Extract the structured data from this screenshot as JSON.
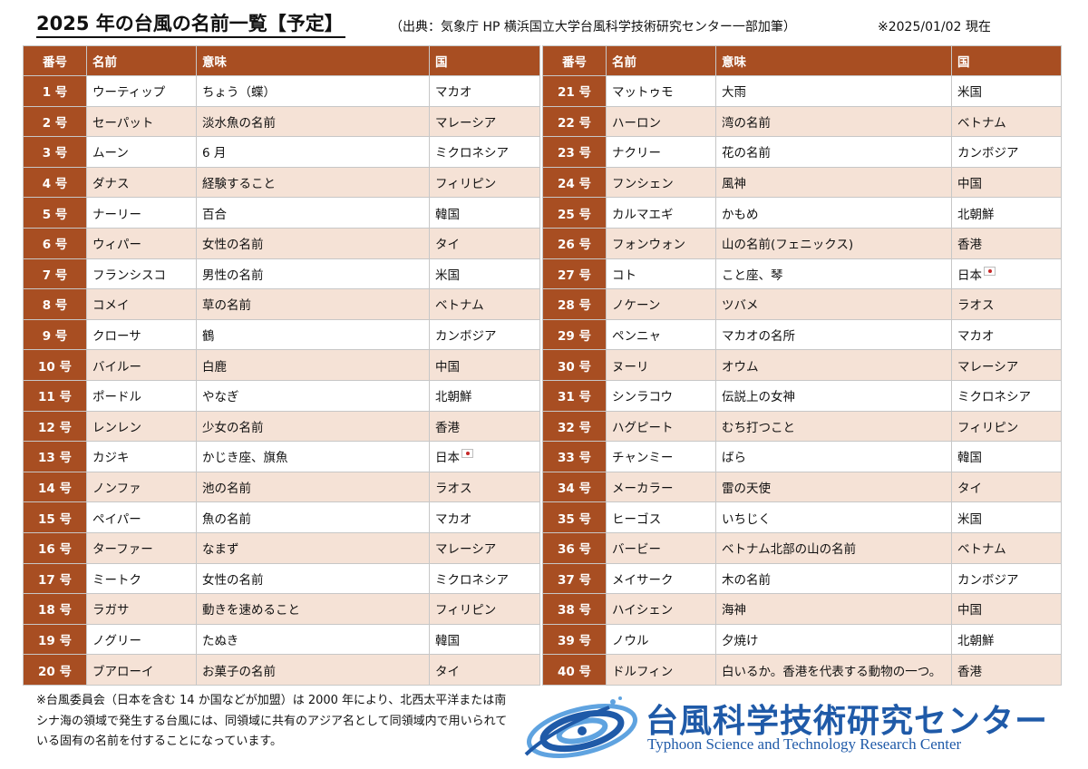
{
  "header": {
    "title": "2025 年の台風の名前一覧【予定】",
    "source": "（出典：気象庁 HP 横浜国立大学台風科学技術研究センター一部加筆）",
    "date": "※2025/01/02 現在"
  },
  "columns": [
    "番号",
    "名前",
    "意味",
    "国"
  ],
  "left_rows": [
    {
      "num": "1 号",
      "name": "ウーティップ",
      "meaning": "ちょう（蝶）",
      "country": "マカオ"
    },
    {
      "num": "2 号",
      "name": "セーパット",
      "meaning": "淡水魚の名前",
      "country": "マレーシア"
    },
    {
      "num": "3 号",
      "name": "ムーン",
      "meaning": "6 月",
      "country": "ミクロネシア"
    },
    {
      "num": "4 号",
      "name": "ダナス",
      "meaning": "経験すること",
      "country": "フィリピン"
    },
    {
      "num": "5 号",
      "name": "ナーリー",
      "meaning": "百合",
      "country": "韓国"
    },
    {
      "num": "6 号",
      "name": "ウィパー",
      "meaning": "女性の名前",
      "country": "タイ"
    },
    {
      "num": "7 号",
      "name": "フランシスコ",
      "meaning": "男性の名前",
      "country": "米国"
    },
    {
      "num": "8 号",
      "name": "コメイ",
      "meaning": "草の名前",
      "country": "ベトナム"
    },
    {
      "num": "9 号",
      "name": "クローサ",
      "meaning": "鶴",
      "country": "カンボジア"
    },
    {
      "num": "10 号",
      "name": "バイルー",
      "meaning": "白鹿",
      "country": "中国"
    },
    {
      "num": "11 号",
      "name": "ポードル",
      "meaning": "やなぎ",
      "country": "北朝鮮"
    },
    {
      "num": "12 号",
      "name": "レンレン",
      "meaning": "少女の名前",
      "country": "香港"
    },
    {
      "num": "13 号",
      "name": "カジキ",
      "meaning": "かじき座、旗魚",
      "country": "日本",
      "flag": true
    },
    {
      "num": "14 号",
      "name": "ノンファ",
      "meaning": "池の名前",
      "country": "ラオス"
    },
    {
      "num": "15 号",
      "name": "ペイパー",
      "meaning": "魚の名前",
      "country": "マカオ"
    },
    {
      "num": "16 号",
      "name": "ターファー",
      "meaning": "なまず",
      "country": "マレーシア"
    },
    {
      "num": "17 号",
      "name": "ミートク",
      "meaning": "女性の名前",
      "country": "ミクロネシア"
    },
    {
      "num": "18 号",
      "name": "ラガサ",
      "meaning": "動きを速めること",
      "country": "フィリピン"
    },
    {
      "num": "19 号",
      "name": "ノグリー",
      "meaning": "たぬき",
      "country": "韓国"
    },
    {
      "num": "20 号",
      "name": "ブアローイ",
      "meaning": "お菓子の名前",
      "country": "タイ"
    }
  ],
  "right_rows": [
    {
      "num": "21 号",
      "name": "マットゥモ",
      "meaning": "大雨",
      "country": "米国"
    },
    {
      "num": "22 号",
      "name": "ハーロン",
      "meaning": "湾の名前",
      "country": "ベトナム"
    },
    {
      "num": "23 号",
      "name": "ナクリー",
      "meaning": "花の名前",
      "country": "カンボジア"
    },
    {
      "num": "24 号",
      "name": "フンシェン",
      "meaning": "風神",
      "country": "中国"
    },
    {
      "num": "25 号",
      "name": "カルマエギ",
      "meaning": "かもめ",
      "country": "北朝鮮"
    },
    {
      "num": "26 号",
      "name": "フォンウォン",
      "meaning": "山の名前(フェニックス)",
      "country": "香港"
    },
    {
      "num": "27 号",
      "name": "コト",
      "meaning": "こと座、琴",
      "country": "日本",
      "flag": true
    },
    {
      "num": "28 号",
      "name": "ノケーン",
      "meaning": "ツバメ",
      "country": "ラオス"
    },
    {
      "num": "29 号",
      "name": "ペンニャ",
      "meaning": "マカオの名所",
      "country": "マカオ"
    },
    {
      "num": "30 号",
      "name": "ヌーリ",
      "meaning": "オウム",
      "country": "マレーシア"
    },
    {
      "num": "31 号",
      "name": "シンラコウ",
      "meaning": "伝説上の女神",
      "country": "ミクロネシア"
    },
    {
      "num": "32 号",
      "name": "ハグピート",
      "meaning": "むち打つこと",
      "country": "フィリピン"
    },
    {
      "num": "33 号",
      "name": "チャンミー",
      "meaning": "ばら",
      "country": "韓国"
    },
    {
      "num": "34 号",
      "name": "メーカラー",
      "meaning": "雷の天使",
      "country": "タイ"
    },
    {
      "num": "35 号",
      "name": "ヒーゴス",
      "meaning": "いちじく",
      "country": "米国"
    },
    {
      "num": "36 号",
      "name": "バービー",
      "meaning": "ベトナム北部の山の名前",
      "country": "ベトナム"
    },
    {
      "num": "37 号",
      "name": "メイサーク",
      "meaning": "木の名前",
      "country": "カンボジア"
    },
    {
      "num": "38 号",
      "name": "ハイシェン",
      "meaning": "海神",
      "country": "中国"
    },
    {
      "num": "39 号",
      "name": "ノウル",
      "meaning": "夕焼け",
      "country": "北朝鮮"
    },
    {
      "num": "40 号",
      "name": "ドルフィン",
      "meaning": "白いるか。香港を代表する動物の一つ。",
      "country": "香港"
    }
  ],
  "footnote": "※台風委員会（日本を含む 14 か国などが加盟）は 2000 年により、北西太平洋または南シナ海の領域で発生する台風には、同領域に共有のアジア名として同領域内で用いられている固有の名前を付することになっています。",
  "logo": {
    "jp": "台風科学技術研究センター",
    "en": "Typhoon Science and Technology Research Center",
    "icon": "typhoon-center-logo-icon",
    "colors": {
      "blue": "#1f5aa8",
      "light_blue": "#5fa3e0"
    }
  },
  "colors": {
    "header_bg": "#a84e22",
    "row_even": "#f5e2d6",
    "row_odd": "#ffffff"
  }
}
